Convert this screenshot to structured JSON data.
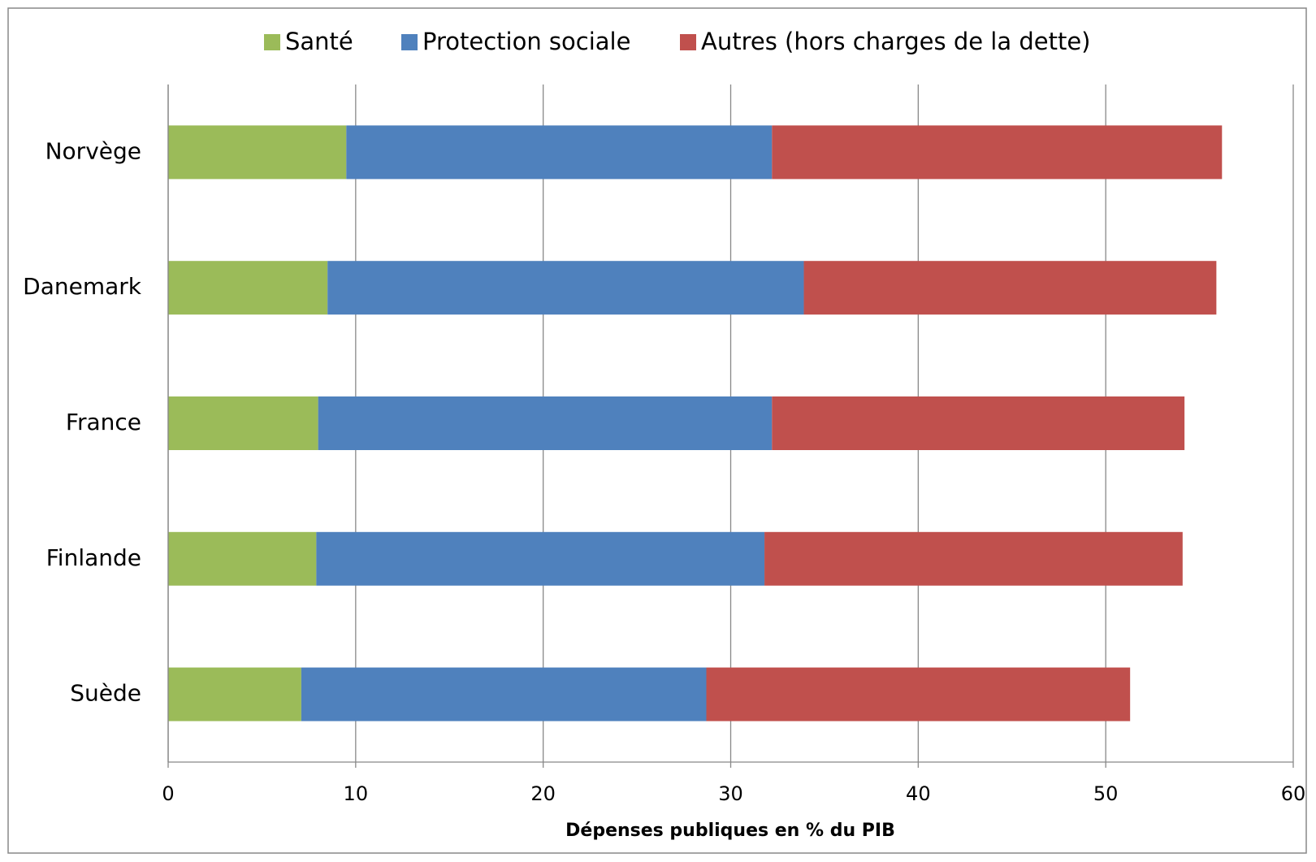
{
  "chart_data": {
    "type": "stacked-barh",
    "x_label": "Dépenses publiques en % du PIB",
    "categories": [
      "Norvège",
      "Danemark",
      "France",
      "Finlande",
      "Suède"
    ],
    "series": [
      {
        "name": "Santé",
        "color": "#9bbb59",
        "values": [
          9.5,
          8.5,
          8.0,
          7.9,
          7.1
        ]
      },
      {
        "name": "Protection sociale",
        "color": "#4f81bd",
        "values": [
          22.7,
          25.4,
          24.2,
          23.9,
          21.6
        ]
      },
      {
        "name": "Autres (hors charges de la dette)",
        "color": "#c0504d",
        "values": [
          24.0,
          22.0,
          22.0,
          22.3,
          22.6
        ]
      }
    ],
    "xlim": [
      0,
      60
    ],
    "xticks": [
      0,
      10,
      20,
      30,
      40,
      50,
      60
    ],
    "grid": true,
    "legend": "top"
  }
}
